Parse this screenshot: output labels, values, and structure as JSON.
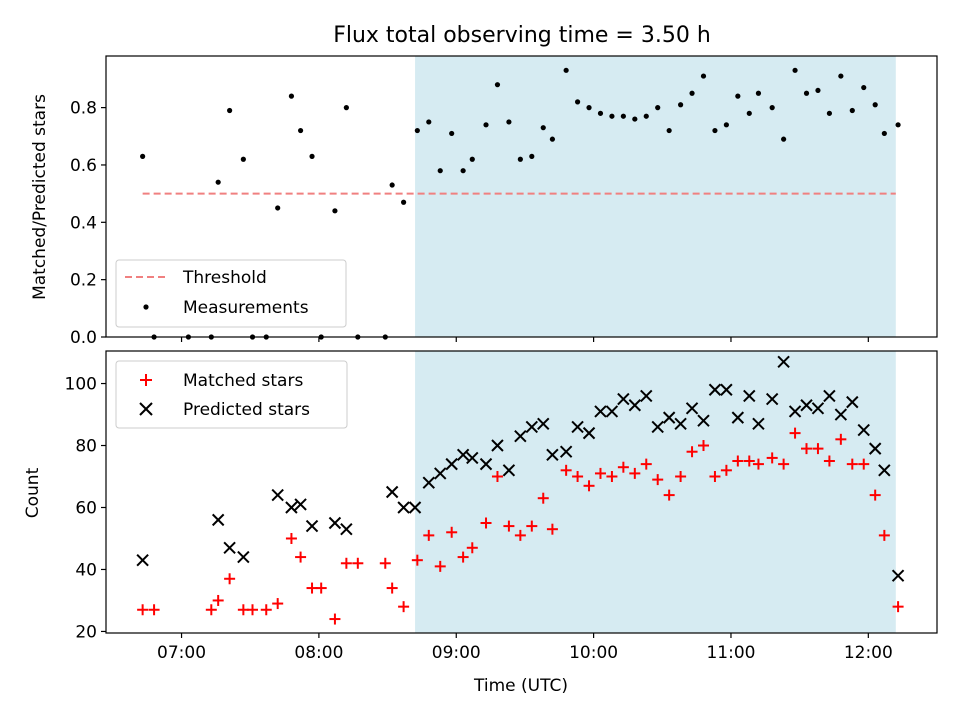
{
  "chart_data": [
    {
      "type": "scatter",
      "title": "Flux total observing time = 3.50 h",
      "xlabel": "",
      "ylabel": "Matched/Predicted stars",
      "xlim": [
        "06:27",
        "12:30"
      ],
      "ylim": [
        0,
        0.98
      ],
      "x_ticks": [
        "07:00",
        "08:00",
        "09:00",
        "10:00",
        "11:00",
        "12:00"
      ],
      "y_ticks": [
        "0.0",
        "0.2",
        "0.4",
        "0.6",
        "0.8"
      ],
      "y_tick_values": [
        0,
        0.2,
        0.4,
        0.6,
        0.8
      ],
      "shaded_span": {
        "start": "08:42",
        "end": "12:12",
        "color": "#add8e6"
      },
      "threshold": {
        "name": "Threshold",
        "value": 0.5,
        "start": "06:43",
        "end": "12:12",
        "color": "#f08080",
        "style": "dashed"
      },
      "series": [
        {
          "name": "Measurements",
          "color": "#000000",
          "marker": "dot",
          "points": [
            [
              "06:43",
              0.63
            ],
            [
              "06:48",
              0.0
            ],
            [
              "07:03",
              0.0
            ],
            [
              "07:13",
              0.0
            ],
            [
              "07:16",
              0.54
            ],
            [
              "07:21",
              0.79
            ],
            [
              "07:27",
              0.62
            ],
            [
              "07:31",
              0.0
            ],
            [
              "07:37",
              0.0
            ],
            [
              "07:42",
              0.45
            ],
            [
              "07:48",
              0.84
            ],
            [
              "07:52",
              0.72
            ],
            [
              "07:57",
              0.63
            ],
            [
              "08:01",
              0.0
            ],
            [
              "08:07",
              0.44
            ],
            [
              "08:12",
              0.8
            ],
            [
              "08:17",
              0.0
            ],
            [
              "08:29",
              0.0
            ],
            [
              "08:32",
              0.53
            ],
            [
              "08:37",
              0.47
            ],
            [
              "08:43",
              0.72
            ],
            [
              "08:48",
              0.75
            ],
            [
              "08:53",
              0.58
            ],
            [
              "08:58",
              0.71
            ],
            [
              "09:03",
              0.58
            ],
            [
              "09:07",
              0.62
            ],
            [
              "09:13",
              0.74
            ],
            [
              "09:18",
              0.88
            ],
            [
              "09:23",
              0.75
            ],
            [
              "09:28",
              0.62
            ],
            [
              "09:33",
              0.63
            ],
            [
              "09:38",
              0.73
            ],
            [
              "09:42",
              0.69
            ],
            [
              "09:48",
              0.93
            ],
            [
              "09:53",
              0.82
            ],
            [
              "09:58",
              0.8
            ],
            [
              "10:03",
              0.78
            ],
            [
              "10:08",
              0.77
            ],
            [
              "10:13",
              0.77
            ],
            [
              "10:18",
              0.76
            ],
            [
              "10:23",
              0.77
            ],
            [
              "10:28",
              0.8
            ],
            [
              "10:33",
              0.72
            ],
            [
              "10:38",
              0.81
            ],
            [
              "10:43",
              0.85
            ],
            [
              "10:48",
              0.91
            ],
            [
              "10:53",
              0.72
            ],
            [
              "10:58",
              0.74
            ],
            [
              "11:03",
              0.84
            ],
            [
              "11:08",
              0.78
            ],
            [
              "11:12",
              0.85
            ],
            [
              "11:18",
              0.8
            ],
            [
              "11:23",
              0.69
            ],
            [
              "11:28",
              0.93
            ],
            [
              "11:33",
              0.85
            ],
            [
              "11:38",
              0.86
            ],
            [
              "11:43",
              0.78
            ],
            [
              "11:48",
              0.91
            ],
            [
              "11:53",
              0.79
            ],
            [
              "11:58",
              0.87
            ],
            [
              "12:03",
              0.81
            ],
            [
              "12:07",
              0.71
            ],
            [
              "12:13",
              0.74
            ]
          ]
        }
      ],
      "legend": {
        "position": "lower-left",
        "entries": [
          "Threshold",
          "Measurements"
        ]
      }
    },
    {
      "type": "scatter",
      "title": "",
      "xlabel": "Time (UTC)",
      "ylabel": "Count",
      "xlim": [
        "06:27",
        "12:30"
      ],
      "ylim": [
        19.5,
        110.5
      ],
      "x_ticks": [
        "07:00",
        "08:00",
        "09:00",
        "10:00",
        "11:00",
        "12:00"
      ],
      "y_ticks": [
        "20",
        "40",
        "60",
        "80",
        "100"
      ],
      "y_tick_values": [
        20,
        40,
        60,
        80,
        100
      ],
      "shaded_span": {
        "start": "08:42",
        "end": "12:12",
        "color": "#add8e6"
      },
      "series": [
        {
          "name": "Matched stars",
          "color": "#ff0000",
          "marker": "plus",
          "points": [
            [
              "06:43",
              27
            ],
            [
              "06:48",
              27
            ],
            [
              "07:13",
              27
            ],
            [
              "07:16",
              30
            ],
            [
              "07:21",
              37
            ],
            [
              "07:27",
              27
            ],
            [
              "07:31",
              27
            ],
            [
              "07:37",
              27
            ],
            [
              "07:42",
              29
            ],
            [
              "07:48",
              50
            ],
            [
              "07:52",
              44
            ],
            [
              "07:57",
              34
            ],
            [
              "08:01",
              34
            ],
            [
              "08:07",
              24
            ],
            [
              "08:12",
              42
            ],
            [
              "08:17",
              42
            ],
            [
              "08:29",
              42
            ],
            [
              "08:32",
              34
            ],
            [
              "08:37",
              28
            ],
            [
              "08:43",
              43
            ],
            [
              "08:48",
              51
            ],
            [
              "08:53",
              41
            ],
            [
              "08:58",
              52
            ],
            [
              "09:03",
              44
            ],
            [
              "09:07",
              47
            ],
            [
              "09:13",
              55
            ],
            [
              "09:18",
              70
            ],
            [
              "09:23",
              54
            ],
            [
              "09:28",
              51
            ],
            [
              "09:33",
              54
            ],
            [
              "09:38",
              63
            ],
            [
              "09:42",
              53
            ],
            [
              "09:48",
              72
            ],
            [
              "09:53",
              70
            ],
            [
              "09:58",
              67
            ],
            [
              "10:03",
              71
            ],
            [
              "10:08",
              70
            ],
            [
              "10:13",
              73
            ],
            [
              "10:18",
              71
            ],
            [
              "10:23",
              74
            ],
            [
              "10:28",
              69
            ],
            [
              "10:33",
              64
            ],
            [
              "10:38",
              70
            ],
            [
              "10:43",
              78
            ],
            [
              "10:48",
              80
            ],
            [
              "10:53",
              70
            ],
            [
              "10:58",
              72
            ],
            [
              "11:03",
              75
            ],
            [
              "11:08",
              75
            ],
            [
              "11:12",
              74
            ],
            [
              "11:18",
              76
            ],
            [
              "11:23",
              74
            ],
            [
              "11:28",
              84
            ],
            [
              "11:33",
              79
            ],
            [
              "11:38",
              79
            ],
            [
              "11:43",
              75
            ],
            [
              "11:48",
              82
            ],
            [
              "11:53",
              74
            ],
            [
              "11:58",
              74
            ],
            [
              "12:03",
              64
            ],
            [
              "12:07",
              51
            ],
            [
              "12:13",
              28
            ]
          ]
        },
        {
          "name": "Predicted stars",
          "color": "#000000",
          "marker": "x",
          "points": [
            [
              "06:43",
              43
            ],
            [
              "07:16",
              56
            ],
            [
              "07:21",
              47
            ],
            [
              "07:27",
              44
            ],
            [
              "07:42",
              64
            ],
            [
              "07:48",
              60
            ],
            [
              "07:52",
              61
            ],
            [
              "07:57",
              54
            ],
            [
              "08:07",
              55
            ],
            [
              "08:12",
              53
            ],
            [
              "08:32",
              65
            ],
            [
              "08:37",
              60
            ],
            [
              "08:42",
              60
            ],
            [
              "08:48",
              68
            ],
            [
              "08:53",
              71
            ],
            [
              "08:58",
              74
            ],
            [
              "09:03",
              77
            ],
            [
              "09:07",
              76
            ],
            [
              "09:13",
              74
            ],
            [
              "09:18",
              80
            ],
            [
              "09:23",
              72
            ],
            [
              "09:28",
              83
            ],
            [
              "09:33",
              86
            ],
            [
              "09:38",
              87
            ],
            [
              "09:42",
              77
            ],
            [
              "09:48",
              78
            ],
            [
              "09:53",
              86
            ],
            [
              "09:58",
              84
            ],
            [
              "10:03",
              91
            ],
            [
              "10:08",
              91
            ],
            [
              "10:13",
              95
            ],
            [
              "10:18",
              93
            ],
            [
              "10:23",
              96
            ],
            [
              "10:28",
              86
            ],
            [
              "10:33",
              89
            ],
            [
              "10:38",
              87
            ],
            [
              "10:43",
              92
            ],
            [
              "10:48",
              88
            ],
            [
              "10:53",
              98
            ],
            [
              "10:58",
              98
            ],
            [
              "11:03",
              89
            ],
            [
              "11:08",
              96
            ],
            [
              "11:12",
              87
            ],
            [
              "11:18",
              95
            ],
            [
              "11:23",
              107
            ],
            [
              "11:28",
              91
            ],
            [
              "11:33",
              93
            ],
            [
              "11:38",
              92
            ],
            [
              "11:43",
              96
            ],
            [
              "11:48",
              90
            ],
            [
              "11:53",
              94
            ],
            [
              "11:58",
              85
            ],
            [
              "12:03",
              79
            ],
            [
              "12:07",
              72
            ],
            [
              "12:13",
              38
            ]
          ]
        }
      ],
      "legend": {
        "position": "upper-left",
        "entries": [
          "Matched stars",
          "Predicted stars"
        ]
      }
    }
  ]
}
